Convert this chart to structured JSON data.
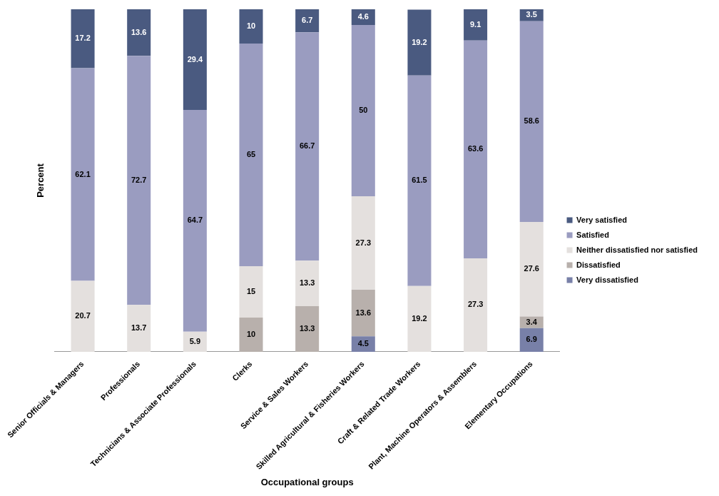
{
  "chart_data": {
    "type": "bar",
    "stacked": true,
    "xlabel": "Occupational groups",
    "ylabel": "Percent",
    "categories": [
      "Senior Officials & Managers",
      "Professionals",
      "Technicians & Associate Professionals",
      "Clerks",
      "Service & Sales Workers",
      "Skilled Agricultural & Fisheries Workers",
      "Craft & Related Trade Workers",
      "Plant, Machine Operators & Assemblers",
      "Elementary Occupations"
    ],
    "series": [
      {
        "name": "Very dissatisfied",
        "color": "#7880a8",
        "values": [
          null,
          null,
          null,
          null,
          null,
          4.5,
          null,
          null,
          6.9
        ]
      },
      {
        "name": "Dissatisfied",
        "color": "#b8b0ac",
        "values": [
          null,
          null,
          null,
          10,
          13.3,
          13.6,
          null,
          null,
          3.4
        ]
      },
      {
        "name": "Neither dissatisfied nor satisfied",
        "color": "#e4e0de",
        "values": [
          20.7,
          13.7,
          5.9,
          15,
          13.3,
          27.3,
          19.2,
          27.3,
          27.6
        ]
      },
      {
        "name": "Satisfied",
        "color": "#9a9cc0",
        "values": [
          62.1,
          72.7,
          64.7,
          65,
          66.7,
          50,
          61.5,
          63.6,
          58.6
        ]
      },
      {
        "name": "Very satisfied",
        "color": "#4a5a80",
        "values": [
          17.2,
          13.6,
          29.4,
          10,
          6.7,
          4.6,
          19.2,
          9.1,
          3.5
        ]
      }
    ],
    "ylim": [
      0,
      100
    ],
    "tick_labels": "x",
    "grid": false,
    "legend": "right",
    "data_labels": true
  }
}
